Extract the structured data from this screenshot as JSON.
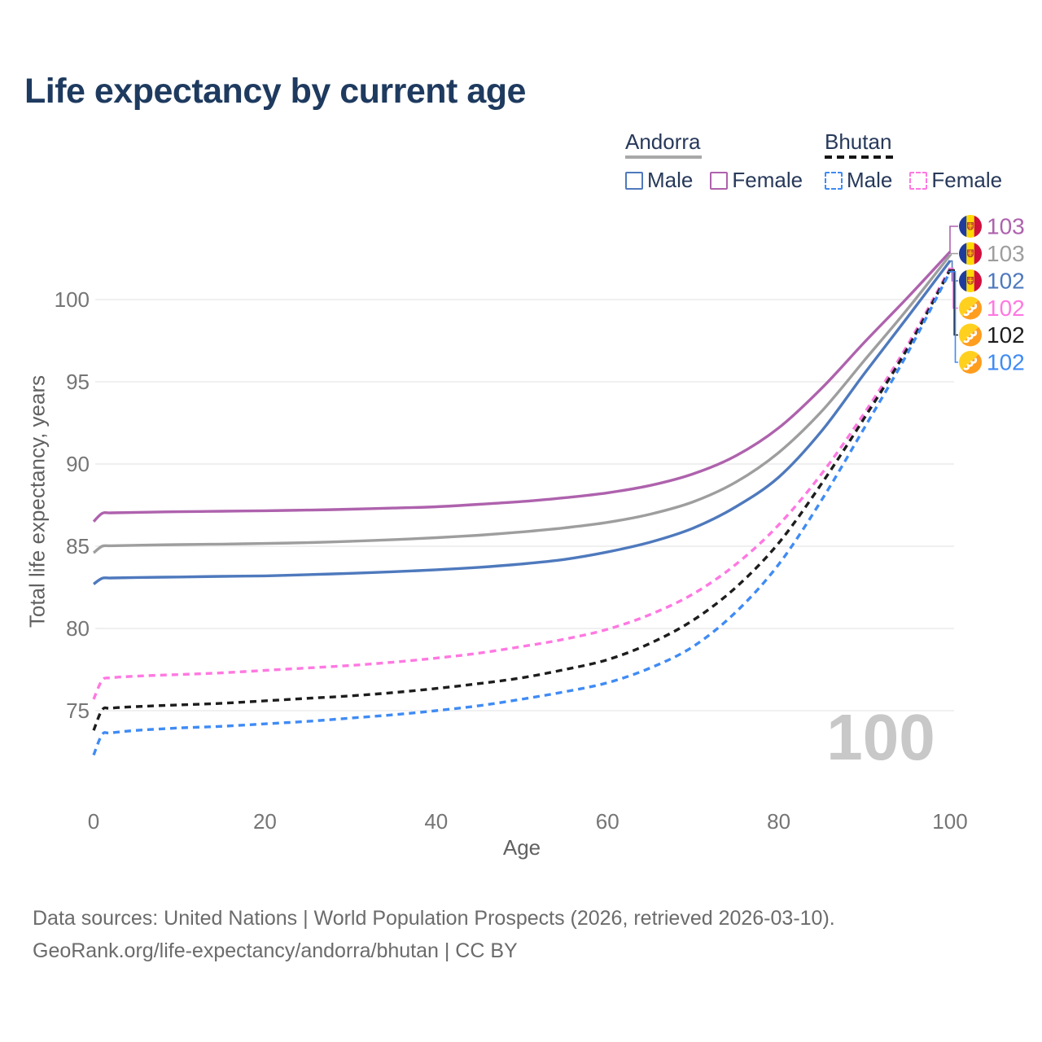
{
  "page": {
    "title": "Life expectancy by current age",
    "watermark_age": "100",
    "footer_line1": "Data sources: United Nations | World Population Prospects (2026, retrieved 2026-03-10).",
    "footer_line2": "GeoRank.org/life-expectancy/andorra/bhutan | CC BY"
  },
  "legend": {
    "andorra": {
      "title": "Andorra",
      "male": "Male",
      "female": "Female"
    },
    "bhutan": {
      "title": "Bhutan",
      "male": "Male",
      "female": "Female"
    }
  },
  "colors": {
    "title_text": "#1e3a5f",
    "legend_text": "#27395a",
    "andorra_female": "#ae62ad",
    "andorra_both": "#9e9e9e",
    "andorra_male": "#4e79bd",
    "bhutan_female": "#ff78e1",
    "bhutan_both": "#1d1d1d",
    "bhutan_male": "#3f8bf5",
    "gridline": "#ececec",
    "tick_label": "#757575",
    "axis_label": "#616161",
    "watermark": "#c8c8c8",
    "footer_text": "#6b6b6b"
  },
  "chart_data": {
    "type": "line",
    "title": "Life expectancy by current age",
    "xlabel": "Age",
    "ylabel": "Total life expectancy, years",
    "x_ticks": [
      0,
      20,
      40,
      60,
      80,
      100
    ],
    "y_ticks": [
      75,
      80,
      85,
      90,
      95,
      100
    ],
    "xlim": [
      0,
      100
    ],
    "ylim": [
      70,
      103.5
    ],
    "grid": "horizontal",
    "legend_position": "top-right",
    "current_age_indicator": 100,
    "ages": [
      0,
      1,
      2,
      5,
      10,
      15,
      20,
      25,
      30,
      35,
      40,
      45,
      50,
      55,
      60,
      65,
      70,
      75,
      80,
      85,
      90,
      95,
      100
    ],
    "series": [
      {
        "name": "Andorra Female",
        "country": "Andorra",
        "sex": "Female",
        "style": "solid",
        "color_key": "andorra_female",
        "end_label": "103",
        "values": [
          86.5,
          87.0,
          87.03,
          87.06,
          87.1,
          87.13,
          87.16,
          87.2,
          87.25,
          87.32,
          87.4,
          87.55,
          87.72,
          87.95,
          88.25,
          88.7,
          89.4,
          90.5,
          92.2,
          94.6,
          97.4,
          100.1,
          102.9
        ]
      },
      {
        "name": "Andorra (both sexes)",
        "country": "Andorra",
        "sex": "Both",
        "style": "solid",
        "color_key": "andorra_both",
        "end_label": "103",
        "values": [
          84.6,
          85.0,
          85.03,
          85.06,
          85.1,
          85.13,
          85.17,
          85.22,
          85.3,
          85.4,
          85.52,
          85.67,
          85.87,
          86.12,
          86.45,
          86.95,
          87.7,
          88.9,
          90.7,
          93.2,
          96.3,
          99.4,
          102.7
        ]
      },
      {
        "name": "Andorra Male",
        "country": "Andorra",
        "sex": "Male",
        "style": "solid",
        "color_key": "andorra_male",
        "end_label": "102",
        "values": [
          82.7,
          83.05,
          83.07,
          83.1,
          83.13,
          83.17,
          83.2,
          83.27,
          83.35,
          83.45,
          83.57,
          83.72,
          83.92,
          84.2,
          84.65,
          85.25,
          86.1,
          87.4,
          89.2,
          92.0,
          95.5,
          98.9,
          102.35
        ]
      },
      {
        "name": "Bhutan Female",
        "country": "Bhutan",
        "sex": "Female",
        "style": "dashed",
        "color_key": "bhutan_female",
        "end_label": "102",
        "values": [
          75.7,
          76.85,
          77.0,
          77.1,
          77.2,
          77.3,
          77.45,
          77.6,
          77.75,
          77.95,
          78.2,
          78.5,
          78.9,
          79.35,
          79.95,
          80.85,
          82.1,
          83.9,
          86.3,
          89.4,
          93.1,
          97.2,
          101.9
        ]
      },
      {
        "name": "Bhutan (both sexes)",
        "country": "Bhutan",
        "sex": "Both",
        "style": "dashed",
        "color_key": "bhutan_both",
        "end_label": "102",
        "values": [
          73.8,
          75.05,
          75.15,
          75.25,
          75.35,
          75.45,
          75.6,
          75.75,
          75.9,
          76.1,
          76.35,
          76.65,
          77.0,
          77.5,
          78.1,
          79.1,
          80.5,
          82.5,
          85.2,
          88.8,
          92.8,
          97.0,
          101.8
        ]
      },
      {
        "name": "Bhutan Male",
        "country": "Bhutan",
        "sex": "Male",
        "style": "dashed",
        "color_key": "bhutan_male",
        "end_label": "102",
        "values": [
          72.3,
          73.55,
          73.65,
          73.8,
          73.95,
          74.05,
          74.2,
          74.35,
          74.55,
          74.75,
          75.0,
          75.3,
          75.7,
          76.15,
          76.7,
          77.6,
          78.9,
          81.0,
          83.9,
          87.8,
          92.2,
          96.7,
          101.7
        ]
      }
    ]
  }
}
